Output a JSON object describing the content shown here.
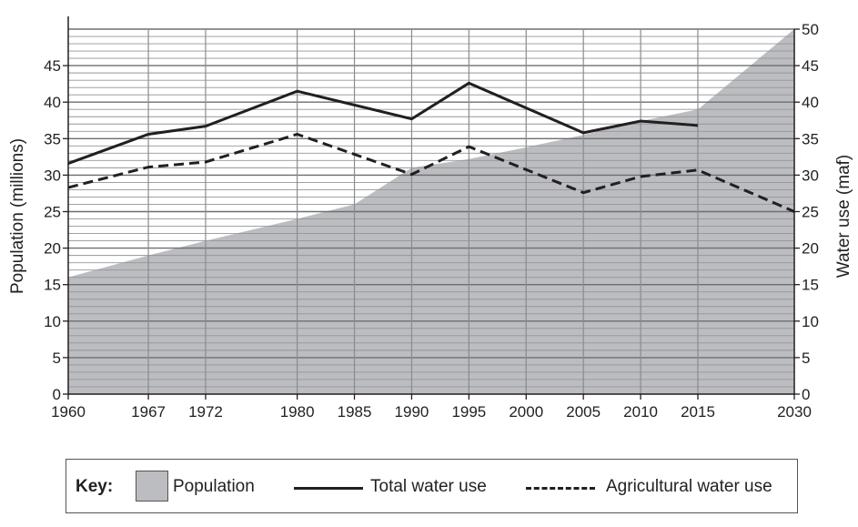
{
  "chart_data": {
    "type": "area+line",
    "categories": [
      "1960",
      "1967",
      "1972",
      "1980",
      "1985",
      "1990",
      "1995",
      "2000",
      "2005",
      "2010",
      "2015",
      "2030"
    ],
    "x": [
      1960,
      1967,
      1972,
      1980,
      1985,
      1990,
      1995,
      2000,
      2005,
      2010,
      2015,
      2030
    ],
    "ylabel_left": "Population (millions)",
    "ylabel_right": "Water use (maf)",
    "ylim_left": [
      0,
      50
    ],
    "ylim_right": [
      0,
      50
    ],
    "yticks_left": [
      "0",
      "5",
      "10",
      "15",
      "20",
      "25",
      "30",
      "35",
      "40",
      "45"
    ],
    "yticks_right": [
      "0",
      "5",
      "10",
      "15",
      "20",
      "25",
      "30",
      "35",
      "40",
      "45",
      "50"
    ],
    "grid": true,
    "legend_placement": "bottom",
    "key_label": "Key:",
    "series": [
      {
        "name": "Population",
        "style": "area",
        "color": "#bcbdc1",
        "values": [
          16,
          19,
          21,
          24,
          26,
          31,
          32.2,
          33.8,
          35.5,
          37.4,
          39,
          50
        ]
      },
      {
        "name": "Total water use",
        "style": "solid",
        "color": "#231f20",
        "values": [
          31.6,
          35.6,
          36.7,
          41.5,
          null,
          37.7,
          42.6,
          null,
          35.8,
          37.4,
          36.8,
          null
        ]
      },
      {
        "name": "Agricultural water use",
        "style": "dashed",
        "color": "#231f20",
        "values": [
          28.3,
          31.1,
          31.8,
          35.6,
          null,
          30.1,
          33.9,
          null,
          27.6,
          29.8,
          30.7,
          25.0
        ]
      }
    ]
  }
}
